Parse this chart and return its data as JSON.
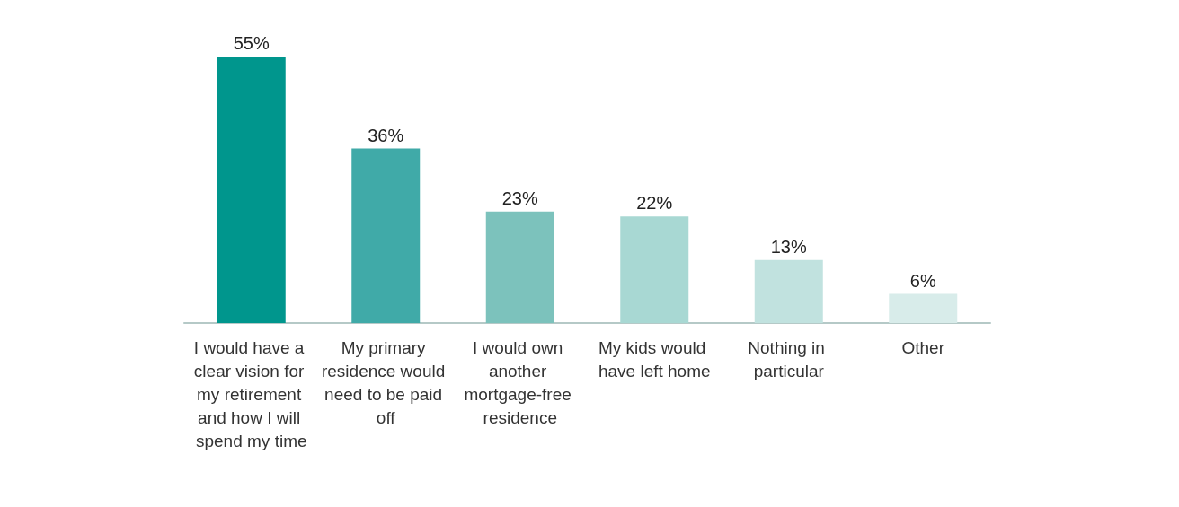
{
  "chart_data": {
    "type": "bar",
    "categories": [
      "I would have a clear vision for my retirement and how I will spend my time",
      "My primary residence would need to be paid off",
      "I would own another mortgage-free residence",
      "My kids would have left home",
      "Nothing in particular",
      "Other"
    ],
    "values": [
      55,
      36,
      23,
      22,
      13,
      6
    ],
    "colors": [
      "#00968d",
      "#40aaa8",
      "#7cc2bc",
      "#a8d8d3",
      "#c1e2df",
      "#d8ecea"
    ],
    "value_labels": [
      "55%",
      "36%",
      "23%",
      "22%",
      "13%",
      "6%"
    ]
  }
}
